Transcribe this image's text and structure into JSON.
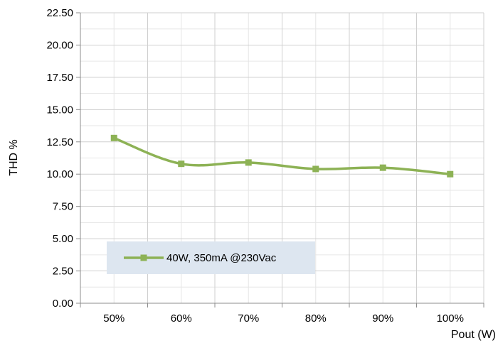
{
  "chart_data": {
    "type": "line",
    "title": "",
    "xlabel": "Pout (W)",
    "ylabel": "THD %",
    "categories": [
      "50%",
      "60%",
      "70%",
      "80%",
      "90%",
      "100%"
    ],
    "series": [
      {
        "name": "40W, 350mA @230Vac",
        "values": [
          12.8,
          10.8,
          10.9,
          10.4,
          10.5,
          10.0
        ],
        "color": "#8db255"
      }
    ],
    "ylim": [
      0,
      22.5
    ],
    "yticks": [
      "0.00",
      "2.50",
      "5.00",
      "7.50",
      "10.00",
      "12.50",
      "15.00",
      "17.50",
      "20.00",
      "22.50"
    ],
    "grid": true,
    "legend_position": "bottom-left",
    "marker": "square",
    "smooth": true
  }
}
